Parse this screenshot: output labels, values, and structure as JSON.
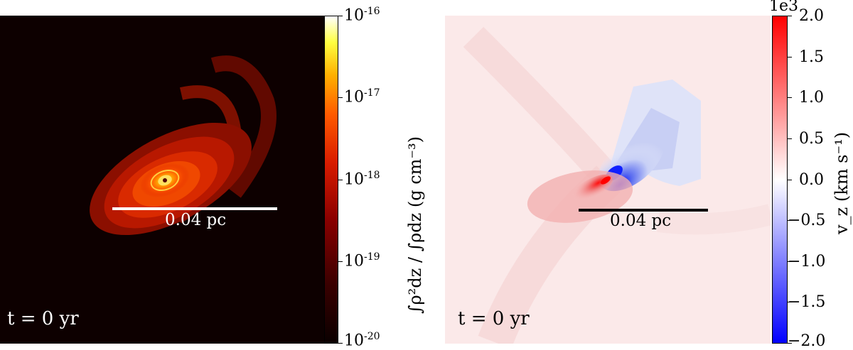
{
  "left_panel": {
    "scale_bar_label": "0.04 pc",
    "time_label": "t = 0 yr",
    "colorbar": {
      "label": "∫ρ²dz / ∫ρdz (g cm⁻³)",
      "scale": "log",
      "ticks": [
        {
          "base": "10",
          "exp": "-16"
        },
        {
          "base": "10",
          "exp": "-17"
        },
        {
          "base": "10",
          "exp": "-18"
        },
        {
          "base": "10",
          "exp": "-19"
        },
        {
          "base": "10",
          "exp": "-20"
        }
      ],
      "colormap": "hot"
    }
  },
  "right_panel": {
    "scale_bar_label": "0.04 pc",
    "time_label": "t = 0 yr",
    "colorbar": {
      "label": "v_z (km s⁻¹)",
      "offset_text": "1e3",
      "scale": "linear",
      "range": [
        -2.0,
        2.0
      ],
      "ticks": [
        "2.0",
        "1.5",
        "1.0",
        "0.5",
        "0.0",
        "−0.5",
        "−1.0",
        "−1.5",
        "−2.0"
      ],
      "colormap": "bwr",
      "colors": {
        "max": "#ff0000",
        "zero": "#ffffff",
        "min": "#0000ff"
      }
    }
  }
}
